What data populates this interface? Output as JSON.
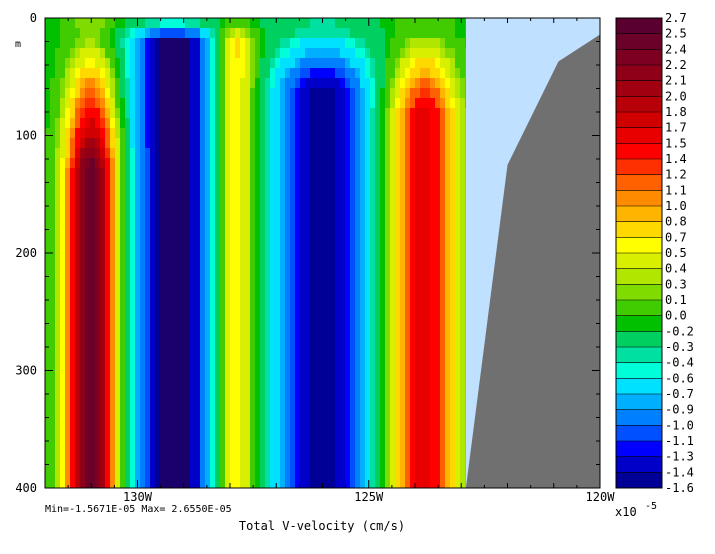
{
  "chart_data": {
    "type": "heatmap",
    "title": "",
    "xlabel": "Total V-velocity (cm/s)",
    "ylabel": "m",
    "xlim": [
      -132,
      -120
    ],
    "ylim": [
      400,
      0
    ],
    "x_ticks": [
      -130,
      -125,
      -120
    ],
    "x_tick_labels": [
      "130W",
      "125W",
      "120W"
    ],
    "y_ticks": [
      0,
      100,
      200,
      300,
      400
    ],
    "y_tick_labels": [
      "0",
      "100",
      "200",
      "300",
      "400"
    ],
    "stats_text": "Min=-1.5671E-05  Max= 2.6550E-05",
    "scale_label": "x10",
    "scale_exponent": "-5",
    "colorbar": {
      "levels": [
        2.7,
        2.5,
        2.4,
        2.2,
        2.1,
        2.0,
        1.8,
        1.7,
        1.5,
        1.4,
        1.2,
        1.1,
        1.0,
        0.8,
        0.7,
        0.5,
        0.4,
        0.3,
        0.1,
        0.0,
        -0.2,
        -0.3,
        -0.4,
        -0.6,
        -0.7,
        -0.9,
        -1.0,
        -1.1,
        -1.3,
        -1.4,
        -1.6
      ],
      "labels": [
        "2.7",
        "2.5",
        "2.4",
        "2.2",
        "2.1",
        "2.0",
        "1.8",
        "1.7",
        "1.5",
        "1.4",
        "1.2",
        "1.1",
        "1.0",
        "0.8",
        "0.7",
        "0.5",
        "0.4",
        "0.3",
        "0.1",
        "0.0",
        "-0.2",
        "-0.3",
        "-0.4",
        "-0.6",
        "-0.7",
        "-0.9",
        "-1.0",
        "-1.1",
        "-1.3",
        "-1.4",
        "-1.6"
      ],
      "colors": [
        "#5a0030",
        "#6b0028",
        "#7d0020",
        "#8f0018",
        "#a10010",
        "#b80008",
        "#d00000",
        "#e80000",
        "#ff0000",
        "#ff3000",
        "#ff6000",
        "#ff8c00",
        "#ffb400",
        "#ffd800",
        "#ffff00",
        "#d8f000",
        "#b0e600",
        "#80dc00",
        "#40cc00",
        "#00c000",
        "#00d060",
        "#00e0a0",
        "#00ffd8",
        "#00e0ff",
        "#00b0ff",
        "#0080ff",
        "#0050ff",
        "#0000ff",
        "#0000c8",
        "#000096",
        "#1a006a"
      ]
    },
    "background_color": "#c0e0ff",
    "land_color": "#707070",
    "land_boundary": [
      {
        "lon": -122.9,
        "depth": 400
      },
      {
        "lon": -122.0,
        "depth": 125
      },
      {
        "lon": -120.9,
        "depth": 37
      },
      {
        "lon": -120.0,
        "depth": 14
      }
    ]
  }
}
